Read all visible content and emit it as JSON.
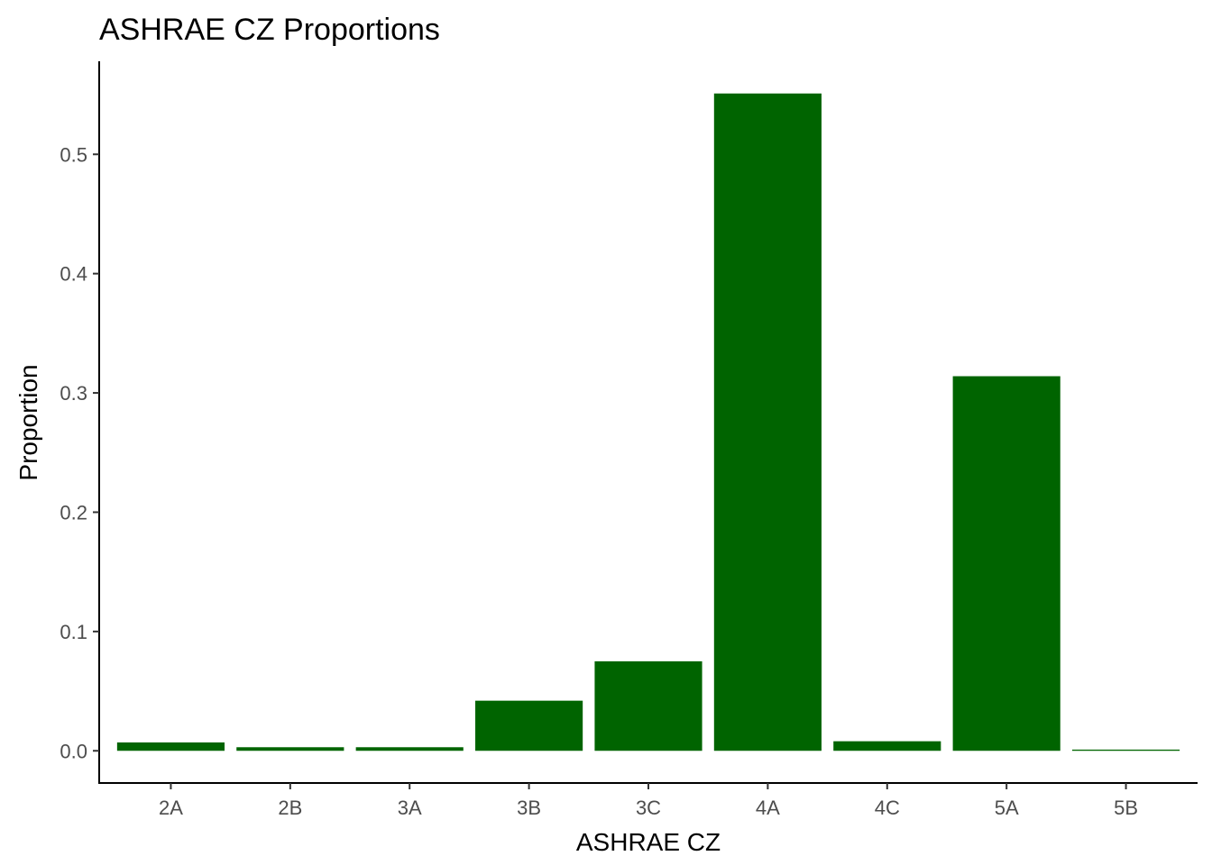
{
  "chart_data": {
    "type": "bar",
    "title": "ASHRAE CZ Proportions",
    "xlabel": "ASHRAE CZ",
    "ylabel": "Proportion",
    "categories": [
      "2A",
      "2B",
      "3A",
      "3B",
      "3C",
      "4A",
      "4C",
      "5A",
      "5B"
    ],
    "values": [
      0.007,
      0.003,
      0.003,
      0.042,
      0.075,
      0.551,
      0.008,
      0.314,
      0.001
    ],
    "ylim": [
      -0.027,
      0.578
    ],
    "yticks": [
      0.0,
      0.1,
      0.2,
      0.3,
      0.4,
      0.5
    ],
    "ytick_labels": [
      "0.0",
      "0.1",
      "0.2",
      "0.3",
      "0.4",
      "0.5"
    ],
    "bar_color": "#006400",
    "grid": false,
    "legend": "none"
  }
}
